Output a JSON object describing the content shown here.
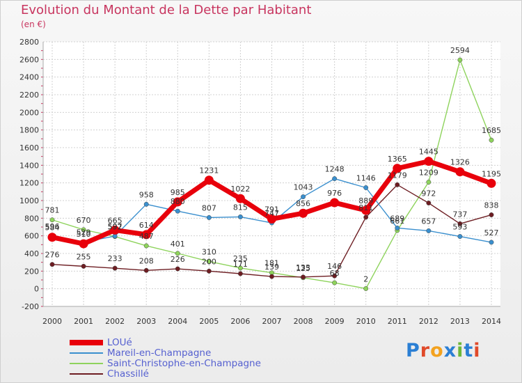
{
  "title": "Evolution du Montant de la Dette par Habitant",
  "unit_label": "(en €)",
  "logo": {
    "text": "Proxiti",
    "letter_colors": [
      "#2b7fd4",
      "#e04a2a",
      "#f3a21f",
      "#2b7fd4",
      "#6cb73a",
      "#2b7fd4",
      "#e04a2a"
    ]
  },
  "chart_data": {
    "type": "line",
    "ylim": [
      -200,
      2800
    ],
    "ytick_step": 200,
    "x": [
      "2000",
      "2001",
      "2002",
      "2003",
      "2004",
      "2005",
      "2006",
      "2007",
      "2008",
      "2009",
      "2010",
      "2011",
      "2012",
      "2013",
      "2014"
    ],
    "series": [
      {
        "name": "LOUé",
        "color": "#e8000b",
        "values": [
          584,
          510,
          665,
          614,
          985,
          1231,
          1022,
          791,
          856,
          976,
          889,
          1365,
          1445,
          1326,
          1195
        ]
      },
      {
        "name": "Mareil-en-Champagne",
        "color": "#3a8fce",
        "values": [
          596,
          529,
          597,
          958,
          880,
          807,
          815,
          747,
          1043,
          1248,
          1146,
          689,
          657,
          593,
          527
        ]
      },
      {
        "name": "Saint-Christophe-en-Champagne",
        "color": "#8ed35c",
        "values": [
          781,
          670,
          592,
          487,
          401,
          310,
          235,
          181,
          125,
          68,
          2,
          661,
          1209,
          2594,
          1685
        ]
      },
      {
        "name": "Chassillé",
        "color": "#6d1d22",
        "values": [
          276,
          255,
          233,
          208,
          226,
          200,
          171,
          139,
          133,
          146,
          811,
          1179,
          972,
          737,
          838
        ]
      }
    ]
  }
}
